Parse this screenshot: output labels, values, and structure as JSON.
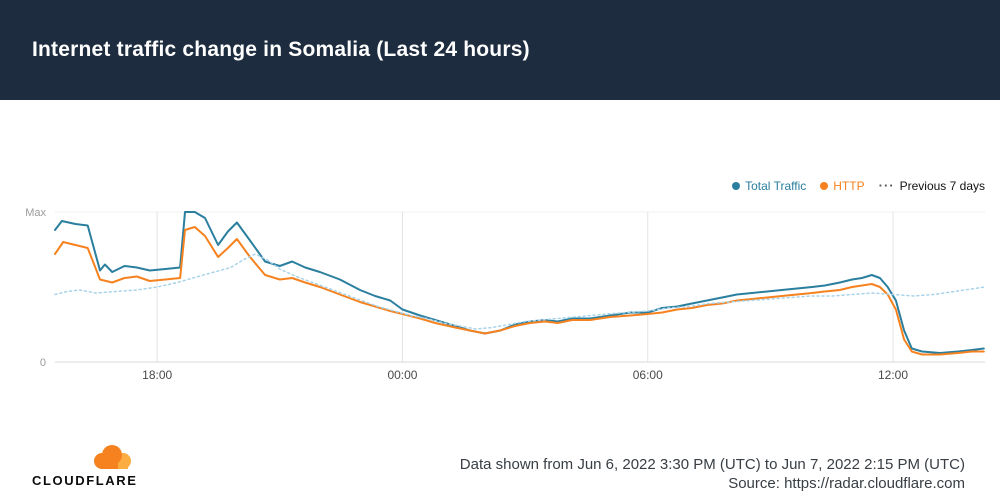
{
  "header": {
    "title": "Internet traffic change in Somalia (Last 24 hours)"
  },
  "legend": [
    {
      "label": "Total Traffic",
      "marker": "dot",
      "color": "#2a7e9e",
      "text_color": "#2a7e9e",
      "icon": "total-traffic-dot-icon"
    },
    {
      "label": "HTTP",
      "marker": "dot",
      "color": "#f6821f",
      "text_color": "#f6821f",
      "icon": "http-dot-icon"
    },
    {
      "label": "Previous 7 days",
      "marker": "dots",
      "color": "#555555",
      "text_color": "#111111",
      "icon": "previous-7-days-dots-icon"
    }
  ],
  "footer": {
    "brand": "CLOUDFLARE",
    "data_range": "Data shown from Jun 6, 2022 3:30 PM (UTC) to Jun 7, 2022 2:15 PM (UTC)",
    "source": "Source: https://radar.cloudflare.com"
  },
  "colors": {
    "header_bg": "#1d2c3e",
    "total_traffic": "#2a7e9e",
    "http": "#f6821f",
    "previous7": "#a9d3e9",
    "grid": "#e3e3e3",
    "grid_light": "#efefef",
    "axis": "#d9d9d9",
    "tick_text": "#4a4a4a",
    "ylabel_text": "#9b9b9b",
    "brand_orange": "#f6821f",
    "brand_orange_light": "#fbad41"
  },
  "chart_data": {
    "type": "line",
    "title": "Internet traffic change in Somalia (Last 24 hours)",
    "x_unit": "hours UTC (Jun 6 15:30 to Jun 7 14:15)",
    "x_range": [
      15.5,
      38.25
    ],
    "ylim": [
      0,
      100
    ],
    "grid": "vertical",
    "legend_position": "top-right",
    "xticks": [
      {
        "t": 18,
        "label": "18:00"
      },
      {
        "t": 24,
        "label": "00:00"
      },
      {
        "t": 30,
        "label": "06:00"
      },
      {
        "t": 36,
        "label": "12:00"
      }
    ],
    "yticks": [
      {
        "v": 100,
        "label": "Max"
      },
      {
        "v": 0,
        "label": "0"
      }
    ],
    "series": [
      {
        "name": "Total Traffic",
        "color": "#2a7e9e",
        "style": "solid",
        "points": [
          [
            15.5,
            88
          ],
          [
            15.67,
            94
          ],
          [
            16.0,
            92
          ],
          [
            16.3,
            91
          ],
          [
            16.6,
            61
          ],
          [
            16.72,
            65
          ],
          [
            16.9,
            60
          ],
          [
            17.2,
            64
          ],
          [
            17.5,
            63
          ],
          [
            17.82,
            61
          ],
          [
            18.2,
            62
          ],
          [
            18.56,
            63
          ],
          [
            18.68,
            100
          ],
          [
            18.92,
            100
          ],
          [
            19.17,
            96
          ],
          [
            19.49,
            78
          ],
          [
            19.73,
            87
          ],
          [
            19.95,
            93
          ],
          [
            20.27,
            81
          ],
          [
            20.64,
            67
          ],
          [
            21.0,
            64
          ],
          [
            21.3,
            67
          ],
          [
            21.62,
            63
          ],
          [
            21.98,
            60
          ],
          [
            22.47,
            55
          ],
          [
            22.96,
            48
          ],
          [
            23.33,
            44
          ],
          [
            23.7,
            41
          ],
          [
            24.0,
            35
          ],
          [
            24.43,
            31
          ],
          [
            24.8,
            28
          ],
          [
            25.29,
            24
          ],
          [
            25.65,
            21
          ],
          [
            26.02,
            19
          ],
          [
            26.39,
            21
          ],
          [
            26.75,
            25
          ],
          [
            27.12,
            27
          ],
          [
            27.49,
            28
          ],
          [
            27.8,
            27
          ],
          [
            28.15,
            29
          ],
          [
            28.59,
            29
          ],
          [
            29.08,
            31
          ],
          [
            29.57,
            33
          ],
          [
            30.0,
            33
          ],
          [
            30.35,
            36
          ],
          [
            30.72,
            37
          ],
          [
            31.08,
            39
          ],
          [
            31.45,
            41
          ],
          [
            31.82,
            43
          ],
          [
            32.18,
            45
          ],
          [
            32.55,
            46
          ],
          [
            32.92,
            47
          ],
          [
            33.28,
            48
          ],
          [
            33.65,
            49
          ],
          [
            34.02,
            50
          ],
          [
            34.33,
            51
          ],
          [
            34.7,
            53
          ],
          [
            35.0,
            55
          ],
          [
            35.24,
            56
          ],
          [
            35.48,
            58
          ],
          [
            35.68,
            56
          ],
          [
            35.87,
            50
          ],
          [
            36.07,
            41
          ],
          [
            36.27,
            21
          ],
          [
            36.46,
            9
          ],
          [
            36.71,
            7
          ],
          [
            37.15,
            6
          ],
          [
            37.59,
            7
          ],
          [
            37.93,
            8
          ],
          [
            38.22,
            9
          ]
        ]
      },
      {
        "name": "HTTP",
        "color": "#f6821f",
        "style": "solid",
        "points": [
          [
            15.5,
            72
          ],
          [
            15.7,
            80
          ],
          [
            16.0,
            78
          ],
          [
            16.3,
            76
          ],
          [
            16.6,
            55
          ],
          [
            16.9,
            53
          ],
          [
            17.2,
            56
          ],
          [
            17.5,
            57
          ],
          [
            17.82,
            54
          ],
          [
            18.2,
            55
          ],
          [
            18.56,
            56
          ],
          [
            18.68,
            88
          ],
          [
            18.92,
            90
          ],
          [
            19.17,
            84
          ],
          [
            19.49,
            70
          ],
          [
            19.73,
            76
          ],
          [
            19.95,
            82
          ],
          [
            20.27,
            70
          ],
          [
            20.64,
            58
          ],
          [
            21.0,
            55
          ],
          [
            21.3,
            56
          ],
          [
            21.62,
            53
          ],
          [
            21.98,
            50
          ],
          [
            22.47,
            45
          ],
          [
            22.96,
            40
          ],
          [
            23.33,
            37
          ],
          [
            23.7,
            34
          ],
          [
            24.0,
            32
          ],
          [
            24.43,
            29
          ],
          [
            24.8,
            26
          ],
          [
            25.29,
            23
          ],
          [
            25.65,
            21
          ],
          [
            26.02,
            19
          ],
          [
            26.39,
            21
          ],
          [
            26.75,
            24
          ],
          [
            27.12,
            26
          ],
          [
            27.49,
            27
          ],
          [
            27.8,
            26
          ],
          [
            28.15,
            28
          ],
          [
            28.59,
            28
          ],
          [
            29.08,
            30
          ],
          [
            29.57,
            31
          ],
          [
            30.0,
            32
          ],
          [
            30.35,
            33
          ],
          [
            30.72,
            35
          ],
          [
            31.08,
            36
          ],
          [
            31.45,
            38
          ],
          [
            31.82,
            39
          ],
          [
            32.18,
            41
          ],
          [
            32.55,
            42
          ],
          [
            32.92,
            43
          ],
          [
            33.28,
            44
          ],
          [
            33.65,
            45
          ],
          [
            34.02,
            46
          ],
          [
            34.33,
            47
          ],
          [
            34.7,
            48
          ],
          [
            35.0,
            50
          ],
          [
            35.24,
            51
          ],
          [
            35.48,
            52
          ],
          [
            35.68,
            50
          ],
          [
            35.87,
            45
          ],
          [
            36.07,
            35
          ],
          [
            36.27,
            15
          ],
          [
            36.46,
            7
          ],
          [
            36.71,
            5
          ],
          [
            37.15,
            5
          ],
          [
            37.59,
            6
          ],
          [
            37.93,
            7
          ],
          [
            38.22,
            7
          ]
        ]
      },
      {
        "name": "Previous 7 days",
        "color": "#a9d3e9",
        "style": "dotted",
        "points": [
          [
            15.5,
            45
          ],
          [
            15.8,
            47
          ],
          [
            16.1,
            48
          ],
          [
            16.5,
            46
          ],
          [
            17.0,
            47
          ],
          [
            17.5,
            48
          ],
          [
            18.0,
            50
          ],
          [
            18.5,
            53
          ],
          [
            19.0,
            57
          ],
          [
            19.4,
            60
          ],
          [
            19.8,
            63
          ],
          [
            20.1,
            68
          ],
          [
            20.4,
            72
          ],
          [
            20.7,
            68
          ],
          [
            21.0,
            62
          ],
          [
            21.4,
            57
          ],
          [
            21.8,
            53
          ],
          [
            22.2,
            49
          ],
          [
            22.6,
            45
          ],
          [
            23.0,
            41
          ],
          [
            23.4,
            37
          ],
          [
            23.8,
            34
          ],
          [
            24.2,
            31
          ],
          [
            24.6,
            29
          ],
          [
            25.0,
            26
          ],
          [
            25.4,
            24
          ],
          [
            25.8,
            22
          ],
          [
            26.2,
            23
          ],
          [
            26.6,
            25
          ],
          [
            27.0,
            27
          ],
          [
            27.4,
            28
          ],
          [
            27.8,
            29
          ],
          [
            28.2,
            30
          ],
          [
            28.6,
            31
          ],
          [
            29.0,
            32
          ],
          [
            29.5,
            33
          ],
          [
            30.0,
            34
          ],
          [
            30.5,
            36
          ],
          [
            31.0,
            37
          ],
          [
            31.5,
            39
          ],
          [
            32.0,
            40
          ],
          [
            32.5,
            41
          ],
          [
            33.0,
            42
          ],
          [
            33.5,
            43
          ],
          [
            34.0,
            44
          ],
          [
            34.5,
            44
          ],
          [
            35.0,
            45
          ],
          [
            35.5,
            46
          ],
          [
            36.0,
            45
          ],
          [
            36.5,
            44
          ],
          [
            37.0,
            45
          ],
          [
            37.5,
            47
          ],
          [
            38.0,
            49
          ],
          [
            38.25,
            50
          ]
        ]
      }
    ]
  }
}
